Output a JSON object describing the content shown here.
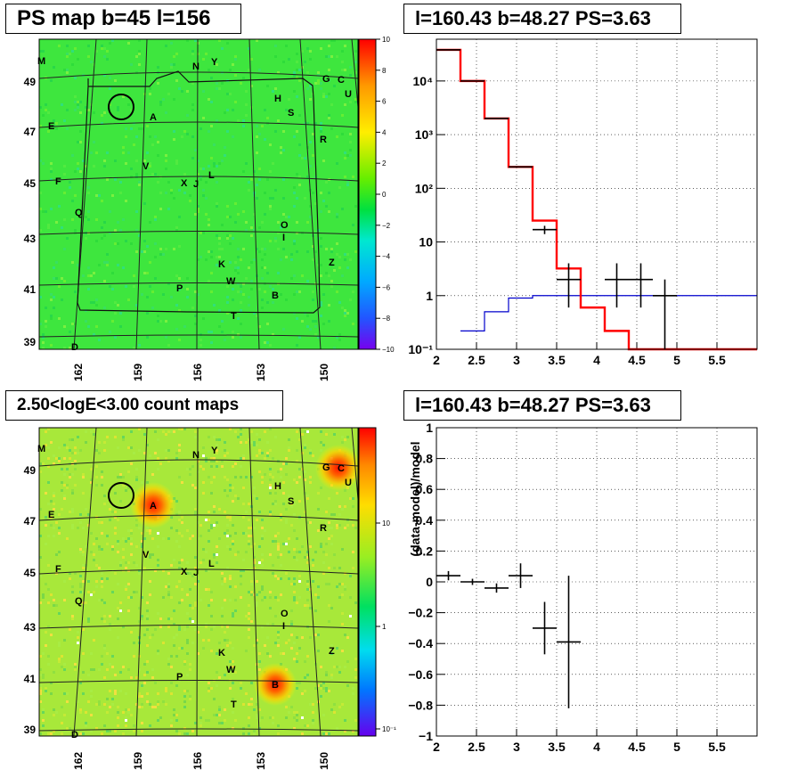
{
  "panels": {
    "map_top": {
      "title": "PS map b=45 l=156",
      "colorbar_ticks": [
        "10",
        "8",
        "6",
        "4",
        "2",
        "0",
        "−2",
        "−4",
        "−6",
        "−8",
        "−10"
      ]
    },
    "map_bottom": {
      "title": "2.50<logE<3.00 count maps",
      "colorbar_ticks": [
        "10",
        "1",
        "10⁻¹"
      ]
    },
    "spectrum": {
      "title": "l=160.43 b=48.27 PS=3.63"
    },
    "residual": {
      "title": "l=160.43 b=48.27 PS=3.63"
    }
  },
  "map_axes": {
    "y_ticks": [
      "49",
      "47",
      "45",
      "43",
      "41",
      "39"
    ],
    "x_ticks": [
      "162",
      "159",
      "156",
      "153",
      "150"
    ]
  },
  "source_labels": {
    "M": "M",
    "N": "N",
    "Y": "Y",
    "G": "G",
    "C": "C",
    "U": "U",
    "H": "H",
    "S": "S",
    "A": "A",
    "E": "E",
    "R": "R",
    "V": "V",
    "L": "L",
    "X": "X",
    "J": "J",
    "F": "F",
    "Q": "Q",
    "O": "O",
    "I": "I",
    "K": "K",
    "Z": "Z",
    "W": "W",
    "P": "P",
    "B": "B",
    "T": "T",
    "D": "D"
  },
  "colors": {
    "map_top_base": "#3ee63e",
    "map_bottom_base": "#a8e83a",
    "model_line": "#ff0000",
    "background_line": "#0000cc",
    "data_points": "#000000"
  },
  "chart_data": [
    {
      "type": "heatmap",
      "title": "PS map b=45 l=156",
      "yticks": [
        49,
        47,
        45,
        43,
        41,
        39
      ],
      "xticks": [
        162,
        159,
        156,
        153,
        150
      ],
      "zlim": [
        -10,
        10
      ]
    },
    {
      "type": "line",
      "title": "l=160.43 b=48.27 PS=3.63",
      "x_ticks": [
        "2",
        "2.5",
        "3",
        "3.5",
        "4",
        "4.5",
        "5",
        "5.5"
      ],
      "y_ticks": [
        "10⁻¹",
        "1",
        "10",
        "10²",
        "10³",
        "10⁴"
      ],
      "xlim": [
        2,
        6
      ],
      "ylim": [
        0.1,
        60000
      ],
      "yscale": "log",
      "grid": true,
      "series": [
        {
          "kind": "step",
          "edges": [
            2.0,
            2.3,
            2.6,
            2.9,
            3.2,
            3.5,
            3.8,
            4.1,
            4.4,
            6.0
          ],
          "values": [
            38000,
            10000,
            2000,
            250,
            25,
            3.2,
            0.6,
            0.22,
            0.1
          ]
        },
        {
          "kind": "step",
          "edges": [
            2.3,
            2.6,
            2.9,
            3.2,
            6.0
          ],
          "values": [
            0.22,
            0.5,
            0.9,
            1.0
          ]
        },
        {
          "kind": "points",
          "x": [
            2.15,
            2.45,
            2.75,
            3.05,
            3.35,
            3.65,
            4.25,
            4.55,
            4.85
          ],
          "y": [
            38000,
            10000,
            2000,
            250,
            17,
            2.0,
            2.0,
            2.0,
            1.0
          ],
          "xerr": [
            0.15,
            0.15,
            0.15,
            0.15,
            0.15,
            0.15,
            0.15,
            0.15,
            0.15
          ],
          "ylo": [
            38000,
            10000,
            2000,
            250,
            14,
            0.6,
            0.6,
            0.6,
            0.1
          ],
          "yhi": [
            38000,
            10000,
            2000,
            250,
            20,
            4.0,
            4.0,
            4.0,
            2.0
          ]
        }
      ]
    },
    {
      "type": "heatmap",
      "title": "2.50<logE<3.00 count maps",
      "yticks": [
        49,
        47,
        45,
        43,
        41,
        39
      ],
      "xticks": [
        162,
        159,
        156,
        153,
        150
      ],
      "zscale": "log"
    },
    {
      "type": "scatter",
      "title": "l=160.43 b=48.27 PS=3.63",
      "ylabel": "(data-model)/model",
      "x_ticks": [
        "2",
        "2.5",
        "3",
        "3.5",
        "4",
        "4.5",
        "5",
        "5.5"
      ],
      "y_ticks": [
        "1",
        "0.8",
        "0.6",
        "0.4",
        "0.2",
        "0",
        "−0.2",
        "−0.4",
        "−0.6",
        "−0.8",
        "−1"
      ],
      "xlim": [
        2,
        6
      ],
      "ylim": [
        -1,
        1
      ],
      "grid": true,
      "series": [
        {
          "x": [
            2.15,
            2.45,
            2.75,
            3.05,
            3.35,
            3.65
          ],
          "y": [
            0.04,
            0.0,
            -0.04,
            0.04,
            -0.3,
            -0.39
          ],
          "xerr": [
            0.15,
            0.15,
            0.15,
            0.15,
            0.15,
            0.15
          ],
          "yerr": [
            0.03,
            0.02,
            0.03,
            0.08,
            0.17,
            0.43
          ]
        }
      ]
    }
  ]
}
